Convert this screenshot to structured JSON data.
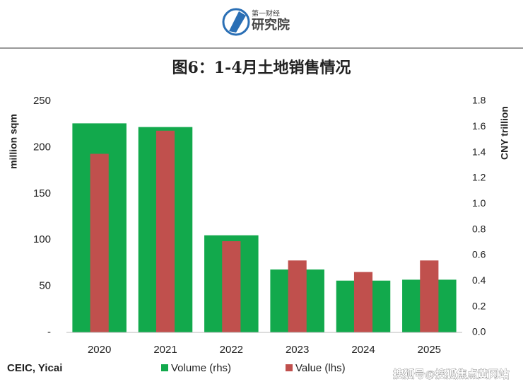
{
  "header": {
    "logo_text": "第一财经",
    "logo_subtitle": "研究院"
  },
  "watermark": "搜狐号@搜狐焦点黄冈站",
  "chart_data": {
    "type": "bar",
    "title": "图6：1-4月土地销售情况",
    "source": "CEIC, Yicai",
    "categories": [
      "2020",
      "2021",
      "2022",
      "2023",
      "2024",
      "2025"
    ],
    "series": [
      {
        "name": "Volume (rhs)",
        "color": "#12a94c",
        "values": [
          226,
          222,
          105,
          68,
          56,
          57
        ]
      },
      {
        "name": "Value (lhs)",
        "color": "#c0504d",
        "axis": "y2",
        "values": [
          1.39,
          1.57,
          0.71,
          0.56,
          0.47,
          0.56
        ]
      }
    ],
    "y_label": "million sqm",
    "y2_label": "CNY trillion",
    "ylim": [
      0,
      250
    ],
    "yticks": [
      {
        "value": 0,
        "label": "-"
      },
      50,
      100,
      150,
      200,
      250
    ],
    "y2lim": [
      0,
      1.8
    ],
    "y2ticks": [
      {
        "value": 0,
        "label": "0.0"
      },
      0.2,
      0.4,
      0.6,
      0.8,
      {
        "value": 1,
        "label": "1.0"
      },
      1.2,
      1.4,
      1.6,
      1.8
    ],
    "grid": false
  }
}
